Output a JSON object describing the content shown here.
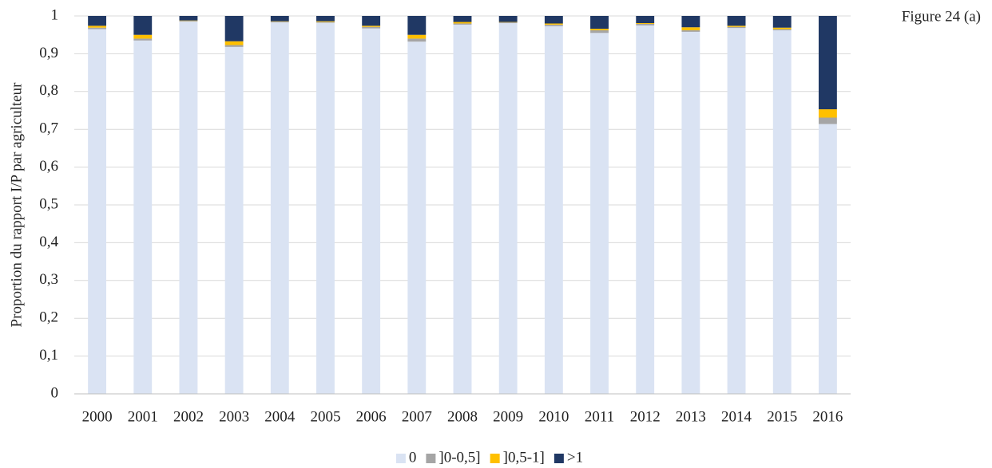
{
  "chart_data": {
    "type": "stacked_bar",
    "annotation": "Figure 24 (a)",
    "ylabel": "Proportion du rapport I/P par agriculteur",
    "categories": [
      "2000",
      "2001",
      "2002",
      "2003",
      "2004",
      "2005",
      "2006",
      "2007",
      "2008",
      "2009",
      "2010",
      "2011",
      "2012",
      "2013",
      "2014",
      "2015",
      "2016"
    ],
    "series": [
      {
        "name": "0",
        "color": "#dae3f3",
        "values": [
          0.965,
          0.935,
          0.985,
          0.918,
          0.983,
          0.982,
          0.967,
          0.932,
          0.977,
          0.981,
          0.973,
          0.955,
          0.975,
          0.958,
          0.968,
          0.962,
          0.714
        ]
      },
      {
        "name": "]0-0,5]",
        "color": "#a5a5a5",
        "values": [
          0.004,
          0.005,
          0.002,
          0.005,
          0.002,
          0.002,
          0.004,
          0.008,
          0.003,
          0.002,
          0.004,
          0.007,
          0.004,
          0.004,
          0.003,
          0.003,
          0.017
        ]
      },
      {
        "name": "]0,5-1]",
        "color": "#ffc000",
        "values": [
          0.005,
          0.01,
          0.001,
          0.01,
          0.001,
          0.002,
          0.003,
          0.01,
          0.004,
          0.001,
          0.003,
          0.004,
          0.002,
          0.008,
          0.003,
          0.004,
          0.022
        ]
      },
      {
        "name": ">1",
        "color": "#203864",
        "values": [
          0.026,
          0.05,
          0.012,
          0.067,
          0.014,
          0.014,
          0.026,
          0.05,
          0.016,
          0.016,
          0.02,
          0.034,
          0.019,
          0.03,
          0.026,
          0.031,
          0.247
        ]
      }
    ],
    "ylim": [
      0,
      1
    ],
    "yticks": [
      0,
      {
        "value": 0.1,
        "label": "0,1"
      },
      {
        "value": 0.2,
        "label": "0,2"
      },
      {
        "value": 0.3,
        "label": "0,3"
      },
      {
        "value": 0.4,
        "label": "0,4"
      },
      {
        "value": 0.5,
        "label": "0,5"
      },
      {
        "value": 0.6,
        "label": "0,6"
      },
      {
        "value": 0.7,
        "label": "0,7"
      },
      {
        "value": 0.8,
        "label": "0,8"
      },
      {
        "value": 0.9,
        "label": "0,9"
      },
      1
    ],
    "grid": true,
    "legend": "bottom"
  }
}
